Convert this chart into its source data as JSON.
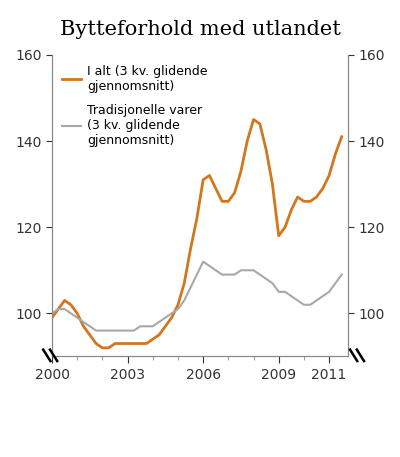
{
  "title": "Bytteforhold med utlandet",
  "ylim": [
    90,
    160
  ],
  "yticks": [
    100,
    120,
    140,
    160
  ],
  "xlim": [
    2000.0,
    2011.75
  ],
  "xticks": [
    2000,
    2003,
    2006,
    2009,
    2011
  ],
  "line1_color": "#D2771E",
  "line2_color": "#A8A8A8",
  "line1_label": "I alt (3 kv. glidende\ngjennomsnitt)",
  "line2_label": "Tradisjonelle varer\n(3 kv. glidende\ngjennomsnitt)",
  "line1_x": [
    2000.0,
    2000.25,
    2000.5,
    2000.75,
    2001.0,
    2001.25,
    2001.5,
    2001.75,
    2002.0,
    2002.25,
    2002.5,
    2002.75,
    2003.0,
    2003.25,
    2003.5,
    2003.75,
    2004.0,
    2004.25,
    2004.5,
    2004.75,
    2005.0,
    2005.25,
    2005.5,
    2005.75,
    2006.0,
    2006.25,
    2006.5,
    2006.75,
    2007.0,
    2007.25,
    2007.5,
    2007.75,
    2008.0,
    2008.25,
    2008.5,
    2008.75,
    2009.0,
    2009.25,
    2009.5,
    2009.75,
    2010.0,
    2010.25,
    2010.5,
    2010.75,
    2011.0,
    2011.25,
    2011.5
  ],
  "line1_y": [
    99,
    101,
    103,
    102,
    100,
    97,
    95,
    93,
    92,
    92,
    93,
    93,
    93,
    93,
    93,
    93,
    94,
    95,
    97,
    99,
    102,
    107,
    115,
    122,
    131,
    132,
    129,
    126,
    126,
    128,
    133,
    140,
    145,
    144,
    138,
    130,
    118,
    120,
    124,
    127,
    126,
    126,
    127,
    129,
    132,
    137,
    141
  ],
  "line2_x": [
    2000.0,
    2000.25,
    2000.5,
    2000.75,
    2001.0,
    2001.25,
    2001.5,
    2001.75,
    2002.0,
    2002.25,
    2002.5,
    2002.75,
    2003.0,
    2003.25,
    2003.5,
    2003.75,
    2004.0,
    2004.25,
    2004.5,
    2004.75,
    2005.0,
    2005.25,
    2005.5,
    2005.75,
    2006.0,
    2006.25,
    2006.5,
    2006.75,
    2007.0,
    2007.25,
    2007.5,
    2007.75,
    2008.0,
    2008.25,
    2008.5,
    2008.75,
    2009.0,
    2009.25,
    2009.5,
    2009.75,
    2010.0,
    2010.25,
    2010.5,
    2010.75,
    2011.0,
    2011.25,
    2011.5
  ],
  "line2_y": [
    100,
    101,
    101,
    100,
    99,
    98,
    97,
    96,
    96,
    96,
    96,
    96,
    96,
    96,
    97,
    97,
    97,
    98,
    99,
    100,
    101,
    103,
    106,
    109,
    112,
    111,
    110,
    109,
    109,
    109,
    110,
    110,
    110,
    109,
    108,
    107,
    105,
    105,
    104,
    103,
    102,
    102,
    103,
    104,
    105,
    107,
    109
  ],
  "background_color": "#ffffff",
  "title_fontsize": 15,
  "tick_fontsize": 10,
  "legend_fontsize": 9
}
